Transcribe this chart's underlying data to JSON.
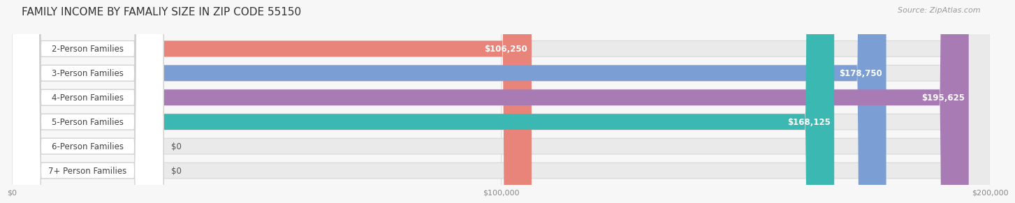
{
  "title": "FAMILY INCOME BY FAMALIY SIZE IN ZIP CODE 55150",
  "source": "Source: ZipAtlas.com",
  "categories": [
    "2-Person Families",
    "3-Person Families",
    "4-Person Families",
    "5-Person Families",
    "6-Person Families",
    "7+ Person Families"
  ],
  "values": [
    106250,
    178750,
    195625,
    168125,
    0,
    0
  ],
  "bar_colors": [
    "#E8847A",
    "#7B9FD4",
    "#A87BB5",
    "#3CB8B2",
    "#9BA8D8",
    "#F0A0B8"
  ],
  "value_labels": [
    "$106,250",
    "$178,750",
    "$195,625",
    "$168,125",
    "$0",
    "$0"
  ],
  "xlim": [
    0,
    200000
  ],
  "xticks": [
    0,
    100000,
    200000
  ],
  "xtick_labels": [
    "$0",
    "$100,000",
    "$200,000"
  ],
  "background_color": "#F7F7F7",
  "bar_bg_color": "#EAEAEA",
  "title_fontsize": 11,
  "source_fontsize": 8,
  "label_fontsize": 8.5,
  "value_fontsize": 8.5,
  "bar_height": 0.65,
  "fig_width": 14.06,
  "fig_height": 3.05
}
